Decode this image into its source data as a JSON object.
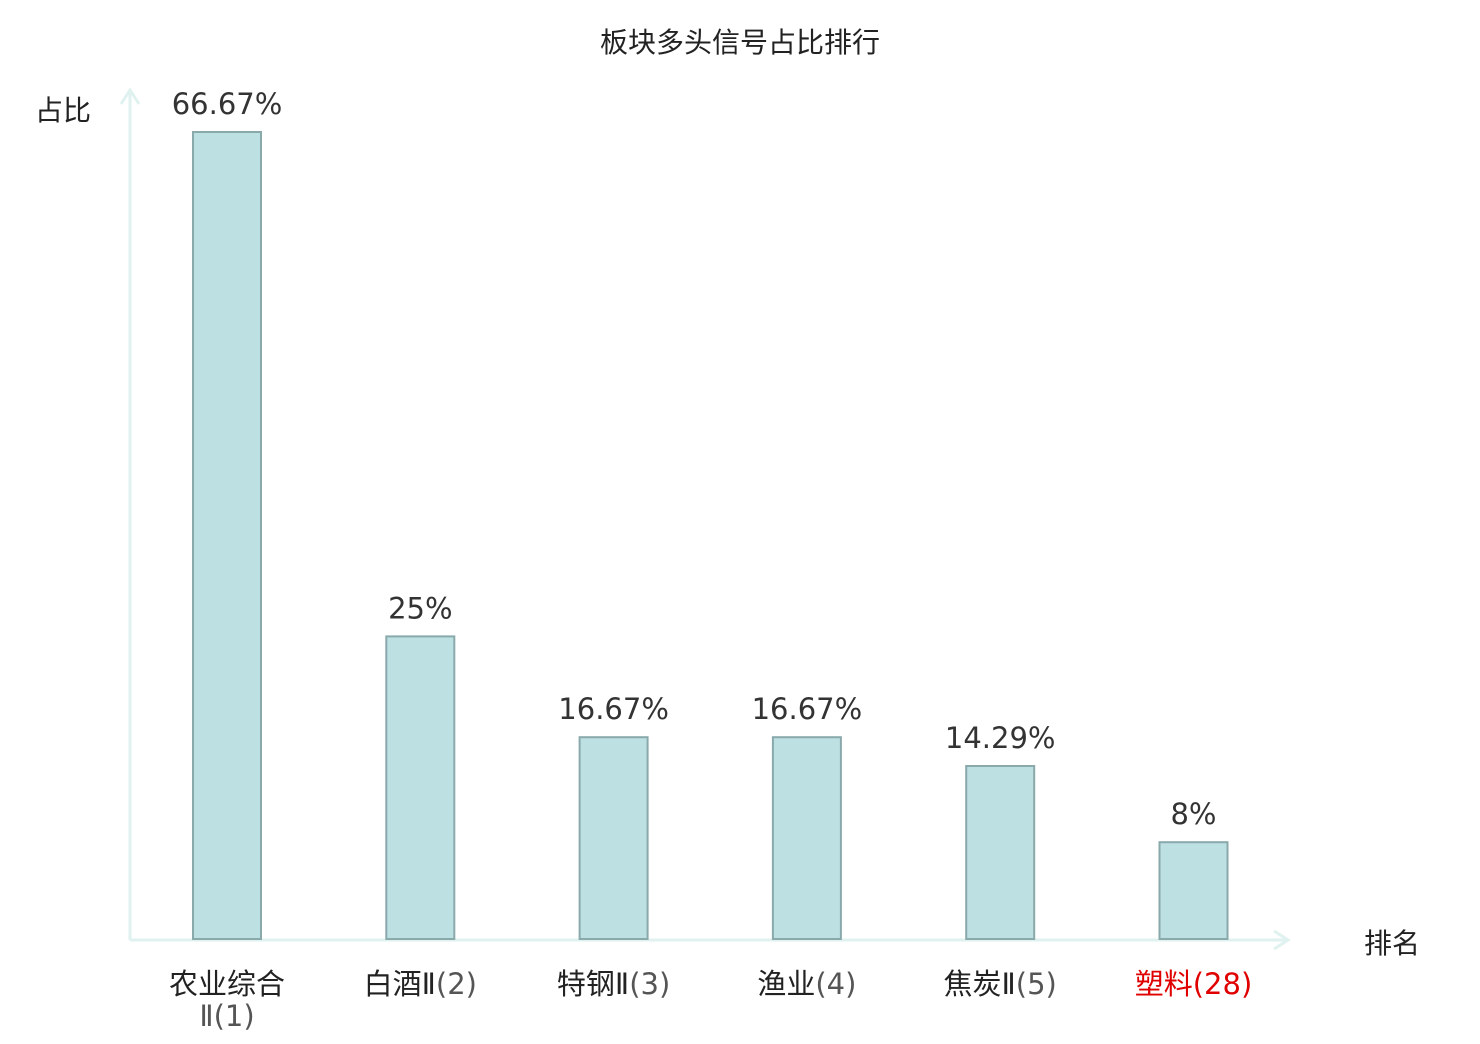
{
  "chart_data": {
    "type": "bar",
    "title": "板块多头信号占比排行",
    "xlabel": "排名",
    "ylabel": "占比",
    "ylim": [
      0,
      70
    ],
    "grid": false,
    "categories": [
      {
        "name": "农业综合Ⅱ",
        "rank": "(1)",
        "highlight": false
      },
      {
        "name": "白酒Ⅱ",
        "rank": "(2)",
        "highlight": false
      },
      {
        "name": "特钢Ⅱ",
        "rank": "(3)",
        "highlight": false
      },
      {
        "name": "渔业",
        "rank": "(4)",
        "highlight": false
      },
      {
        "name": "焦炭Ⅱ",
        "rank": "(5)",
        "highlight": false
      },
      {
        "name": "塑料",
        "rank": "(28)",
        "highlight": true
      }
    ],
    "values": [
      66.67,
      25,
      16.67,
      16.67,
      14.29,
      8
    ],
    "value_labels": [
      "66.67%",
      "25%",
      "16.67%",
      "16.67%",
      "14.29%",
      "8%"
    ],
    "colors": {
      "bar_fill": "#bde0e3",
      "bar_stroke": "#8aa9ab",
      "axis": "#e0f2ef",
      "text": "#222222",
      "value_text": "#333333",
      "rank_text": "#555555",
      "highlight": "#e00000"
    }
  }
}
